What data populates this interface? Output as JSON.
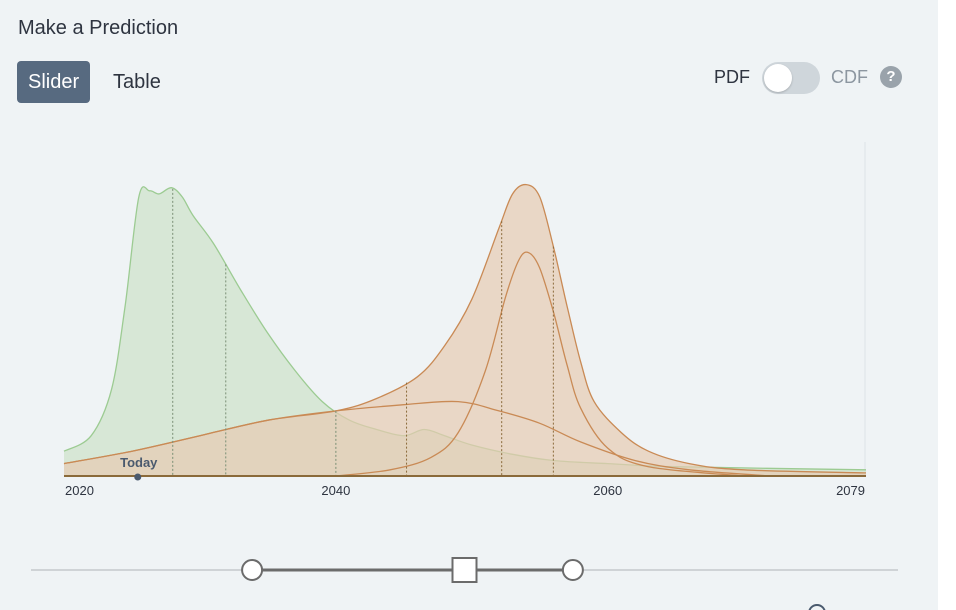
{
  "panel": {
    "title": "Make a Prediction"
  },
  "tabs": [
    {
      "label": "Slider",
      "active": true
    },
    {
      "label": "Table",
      "active": false
    }
  ],
  "toggle": {
    "left_label": "PDF",
    "right_label": "CDF",
    "state": "PDF",
    "help_glyph": "?"
  },
  "colors": {
    "community_fill": "#cfe3cb",
    "community_line": "#9ccb92",
    "user_fill": "#e7cbb2",
    "user_line": "#c98a55",
    "active_tab": "#576a80",
    "today_marker": "#4a5a6e"
  },
  "chart_data": {
    "type": "area",
    "x_axis": {
      "min": 2020,
      "max": 2079,
      "tick_labels": [
        "2020",
        "2040",
        "2060",
        "2079"
      ]
    },
    "today": {
      "label": "Today",
      "year": 2025.5
    },
    "series": [
      {
        "role": "community",
        "color": "#9ccb92",
        "points": [
          [
            2020,
            0.08
          ],
          [
            2022,
            0.13
          ],
          [
            2023.5,
            0.28
          ],
          [
            2024.5,
            0.55
          ],
          [
            2025.5,
            0.9
          ],
          [
            2026.3,
            0.92
          ],
          [
            2027,
            0.91
          ],
          [
            2027.9,
            0.93
          ],
          [
            2028.7,
            0.9
          ],
          [
            2029.5,
            0.84
          ],
          [
            2031,
            0.75
          ],
          [
            2033,
            0.6
          ],
          [
            2035,
            0.46
          ],
          [
            2037,
            0.34
          ],
          [
            2039,
            0.24
          ],
          [
            2041,
            0.18
          ],
          [
            2043,
            0.15
          ],
          [
            2045,
            0.13
          ],
          [
            2046.5,
            0.15
          ],
          [
            2048,
            0.13
          ],
          [
            2050,
            0.1
          ],
          [
            2053,
            0.07
          ],
          [
            2056,
            0.05
          ],
          [
            2060,
            0.04
          ],
          [
            2065,
            0.03
          ],
          [
            2079,
            0.02
          ]
        ],
        "quartile_markers": [
          2028,
          2031.9,
          2040
        ]
      },
      {
        "role": "user_combined",
        "color": "#c98a55",
        "points": [
          [
            2020,
            0.04
          ],
          [
            2025,
            0.08
          ],
          [
            2030,
            0.13
          ],
          [
            2035,
            0.18
          ],
          [
            2040,
            0.21
          ],
          [
            2043,
            0.25
          ],
          [
            2046,
            0.32
          ],
          [
            2048,
            0.42
          ],
          [
            2050,
            0.57
          ],
          [
            2052,
            0.8
          ],
          [
            2053,
            0.91
          ],
          [
            2054,
            0.94
          ],
          [
            2055,
            0.9
          ],
          [
            2056,
            0.74
          ],
          [
            2057,
            0.55
          ],
          [
            2058,
            0.37
          ],
          [
            2059,
            0.24
          ],
          [
            2061,
            0.14
          ],
          [
            2063,
            0.08
          ],
          [
            2066,
            0.04
          ],
          [
            2070,
            0.02
          ],
          [
            2079,
            0.01
          ]
        ],
        "quartile_markers": [
          2045.2,
          2052.2,
          2056
        ]
      },
      {
        "role": "component_narrow",
        "color": "#c98a55",
        "points": [
          [
            2040,
            0.0
          ],
          [
            2044,
            0.02
          ],
          [
            2047,
            0.06
          ],
          [
            2049,
            0.14
          ],
          [
            2051,
            0.34
          ],
          [
            2052.5,
            0.58
          ],
          [
            2053.5,
            0.7
          ],
          [
            2054.2,
            0.72
          ],
          [
            2055,
            0.67
          ],
          [
            2056,
            0.53
          ],
          [
            2057,
            0.36
          ],
          [
            2058,
            0.22
          ],
          [
            2060,
            0.09
          ],
          [
            2063,
            0.03
          ],
          [
            2070,
            0.0
          ]
        ]
      },
      {
        "role": "component_wide",
        "color": "#c98a55",
        "points": [
          [
            2020,
            0.04
          ],
          [
            2025,
            0.08
          ],
          [
            2030,
            0.13
          ],
          [
            2035,
            0.18
          ],
          [
            2040,
            0.21
          ],
          [
            2045,
            0.23
          ],
          [
            2049,
            0.24
          ],
          [
            2052,
            0.21
          ],
          [
            2055,
            0.17
          ],
          [
            2058,
            0.11
          ],
          [
            2062,
            0.05
          ],
          [
            2066,
            0.02
          ],
          [
            2072,
            0.0
          ]
        ]
      }
    ]
  },
  "slider": {
    "left_handle": 0.255,
    "center_handle": 0.5,
    "right_handle": 0.625
  }
}
